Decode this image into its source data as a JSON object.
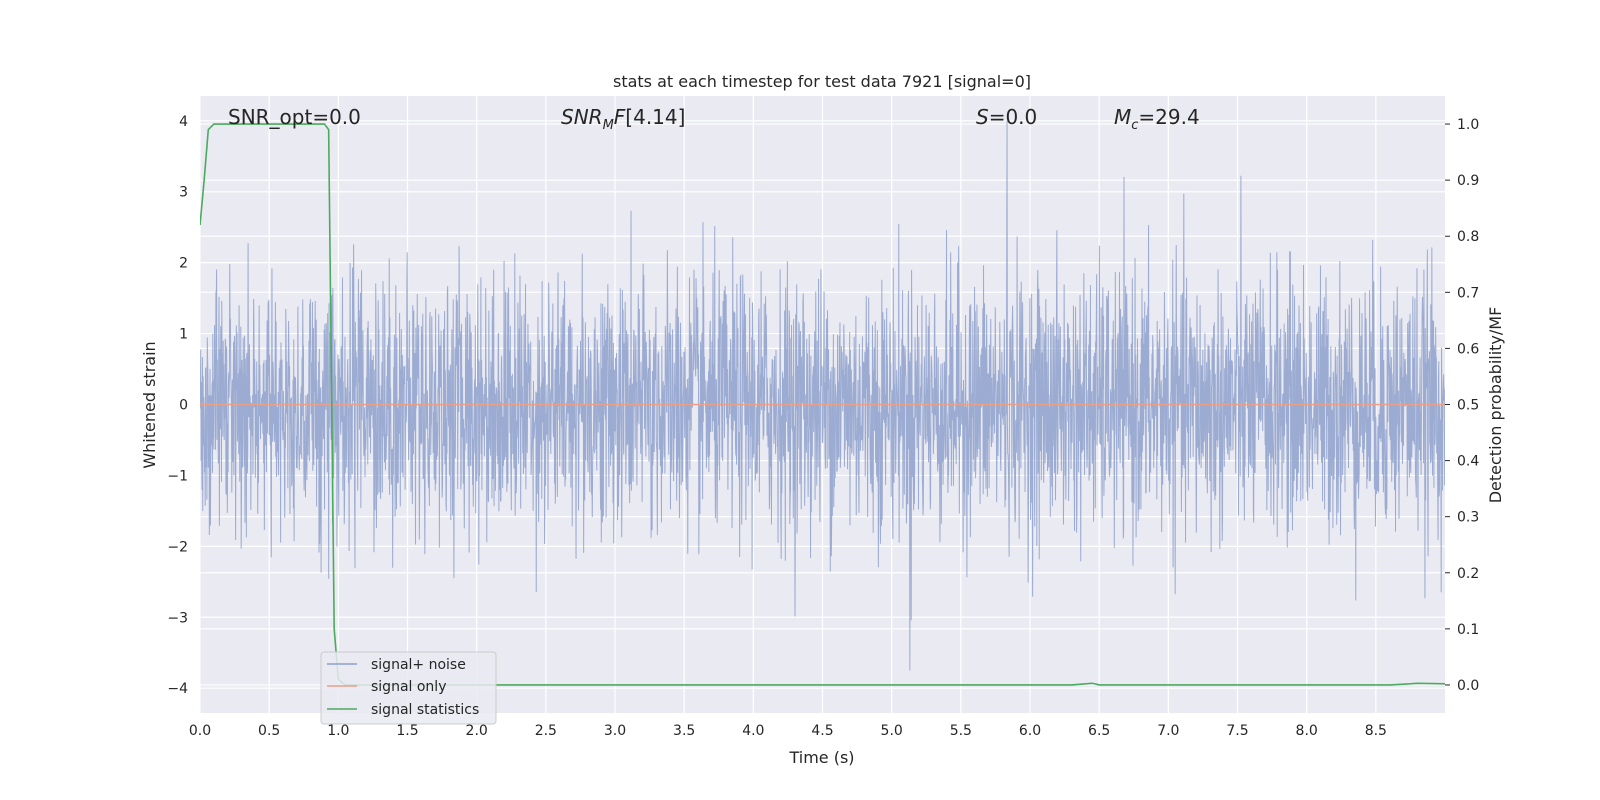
{
  "chart_data": {
    "type": "line",
    "title": "stats at each timestep for test data 7921 [signal=0]",
    "xlabel": "Time (s)",
    "ylabel": "Whitened strain",
    "ylabel_right": "Detection probability/MF",
    "xlim": [
      0.0,
      9.0
    ],
    "ylim": [
      -4.35,
      4.35
    ],
    "ylim_right": [
      -0.05,
      1.05
    ],
    "x_ticks": [
      "0.0",
      "0.5",
      "1.0",
      "1.5",
      "2.0",
      "2.5",
      "3.0",
      "3.5",
      "4.0",
      "4.5",
      "5.0",
      "5.5",
      "6.0",
      "6.5",
      "7.0",
      "7.5",
      "8.0",
      "8.5"
    ],
    "y_ticks": [
      "−4",
      "−3",
      "−2",
      "−1",
      "0",
      "1",
      "2",
      "3",
      "4"
    ],
    "y_ticks_right": [
      "0.0",
      "0.1",
      "0.2",
      "0.3",
      "0.4",
      "0.5",
      "0.6",
      "0.7",
      "0.8",
      "0.9",
      "1.0"
    ],
    "grid": true,
    "legend_position": "lower-left",
    "annotations": {
      "snr_opt": "SNR_opt=0.0",
      "snr_mf": "[4.14]",
      "s_val": "=0.0",
      "mc_val": "=29.4"
    },
    "series": [
      {
        "name": "signal+ noise",
        "color": "#8da0cb",
        "kind": "noise",
        "std": 0.9,
        "peak_max": 4.0,
        "peak_min": -3.75
      },
      {
        "name": "signal only",
        "color": "#e8a088",
        "kind": "constant",
        "y": 0.0
      },
      {
        "name": "signal statistics",
        "color": "#4caa5e",
        "axis": "right",
        "x": [
          0.0,
          0.03,
          0.06,
          0.1,
          0.2,
          0.4,
          0.6,
          0.8,
          0.9,
          0.93,
          0.95,
          0.97,
          1.0,
          1.05,
          1.5,
          3.0,
          5.0,
          6.3,
          6.45,
          6.5,
          7.0,
          8.0,
          8.6,
          8.75,
          8.8,
          9.0
        ],
        "y": [
          0.82,
          0.9,
          0.99,
          1.0,
          1.0,
          1.0,
          1.0,
          1.0,
          1.0,
          0.99,
          0.55,
          0.1,
          0.01,
          0.0,
          0.0,
          0.0,
          0.0,
          0.0,
          0.003,
          0.0,
          0.0,
          0.0,
          0.0,
          0.002,
          0.003,
          0.002
        ]
      }
    ]
  }
}
